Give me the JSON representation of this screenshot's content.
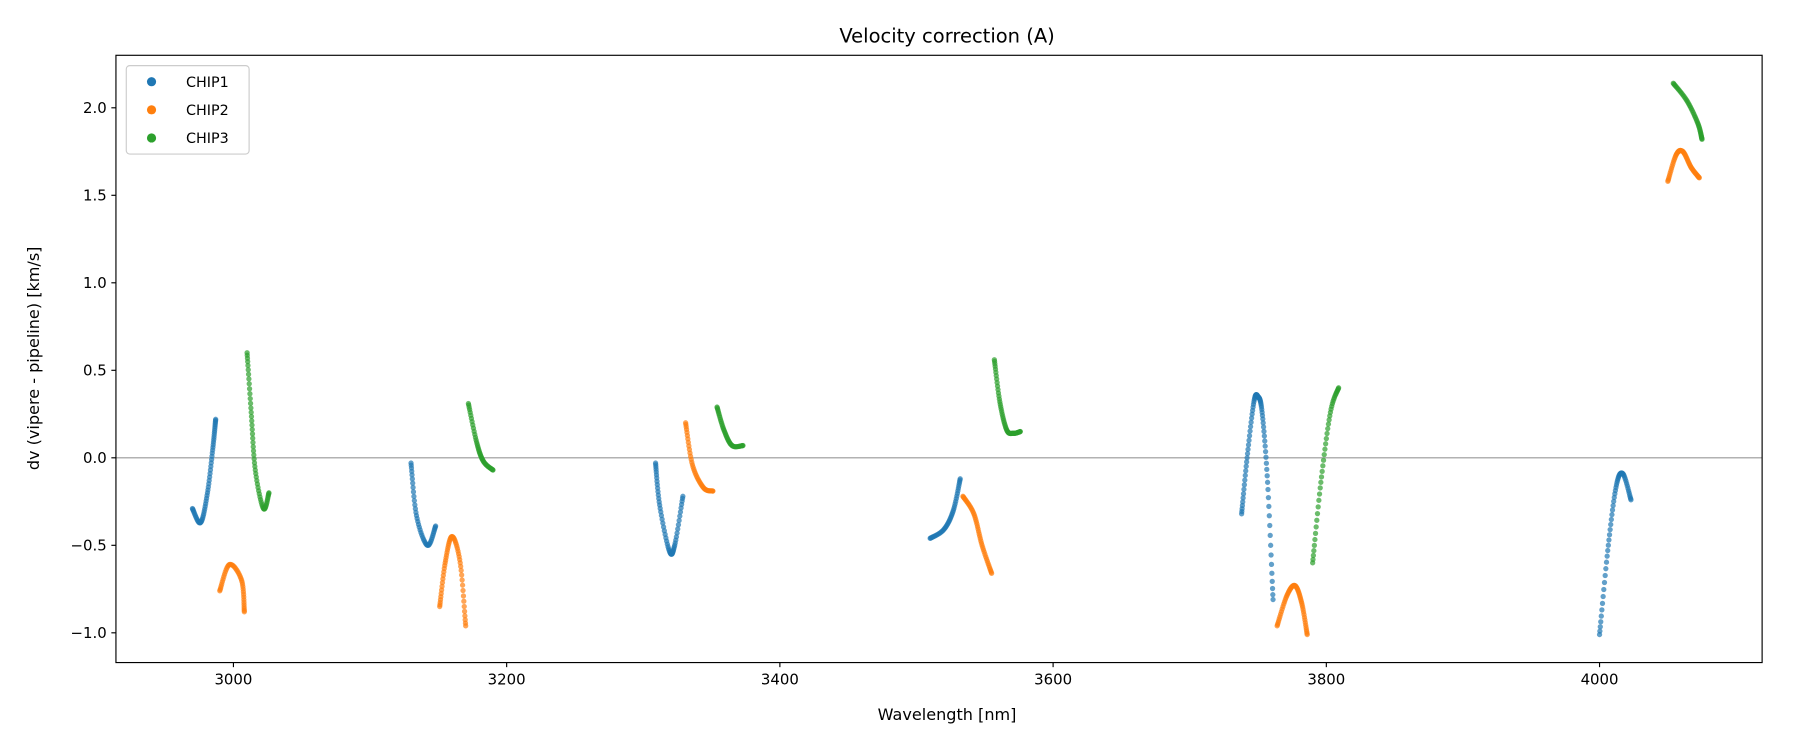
{
  "chart_data": {
    "type": "scatter",
    "title": "Velocity correction (A)",
    "xlabel": "Wavelength [nm]",
    "ylabel": "dv (vipere - pipeline) [km/s]",
    "xlim": [
      2914,
      4119
    ],
    "ylim": [
      -1.17,
      2.3
    ],
    "xticks": [
      3000,
      3200,
      3400,
      3600,
      3800,
      4000
    ],
    "xtick_labels": [
      "3000",
      "3200",
      "3400",
      "3600",
      "3800",
      "4000"
    ],
    "yticks": [
      -1.0,
      -0.5,
      0.0,
      0.5,
      1.0,
      1.5,
      2.0
    ],
    "ytick_labels": [
      "−1.0",
      "−0.5",
      "0.0",
      "0.5",
      "1.0",
      "1.5",
      "2.0"
    ],
    "hline": 0.0,
    "grid": false,
    "legend_position": "top-left",
    "series": [
      {
        "name": "CHIP1",
        "color": "#1f77b4",
        "segments": [
          [
            [
              2970,
              -0.29
            ],
            [
              2976,
              -0.37
            ],
            [
              2981,
              -0.2
            ],
            [
              2985,
              0.06
            ],
            [
              2987,
              0.22
            ]
          ],
          [
            [
              3130,
              -0.03
            ],
            [
              3134,
              -0.33
            ],
            [
              3142,
              -0.5
            ],
            [
              3148,
              -0.39
            ]
          ],
          [
            [
              3309,
              -0.03
            ],
            [
              3312,
              -0.27
            ],
            [
              3319,
              -0.53
            ],
            [
              3323,
              -0.5
            ],
            [
              3329,
              -0.22
            ]
          ],
          [
            [
              3510,
              -0.46
            ],
            [
              3520,
              -0.41
            ],
            [
              3527,
              -0.3
            ],
            [
              3532,
              -0.12
            ]
          ],
          [
            [
              3738,
              -0.32
            ],
            [
              3742,
              0.0
            ],
            [
              3747,
              0.32
            ],
            [
              3750,
              0.35
            ],
            [
              3753,
              0.26
            ],
            [
              3757,
              -0.14
            ],
            [
              3761,
              -0.81
            ]
          ],
          [
            [
              4000,
              -1.01
            ],
            [
              4006,
              -0.53
            ],
            [
              4012,
              -0.17
            ],
            [
              4017,
              -0.09
            ],
            [
              4023,
              -0.24
            ]
          ]
        ]
      },
      {
        "name": "CHIP2",
        "color": "#ff7f0e",
        "segments": [
          [
            [
              2990,
              -0.76
            ],
            [
              2997,
              -0.61
            ],
            [
              3006,
              -0.7
            ],
            [
              3008,
              -0.88
            ]
          ],
          [
            [
              3151,
              -0.85
            ],
            [
              3155,
              -0.6
            ],
            [
              3160,
              -0.45
            ],
            [
              3166,
              -0.6
            ],
            [
              3170,
              -0.96
            ]
          ],
          [
            [
              3331,
              0.2
            ],
            [
              3336,
              -0.04
            ],
            [
              3344,
              -0.17
            ],
            [
              3351,
              -0.19
            ]
          ],
          [
            [
              3534,
              -0.22
            ],
            [
              3542,
              -0.32
            ],
            [
              3548,
              -0.5
            ],
            [
              3555,
              -0.66
            ]
          ],
          [
            [
              3764,
              -0.96
            ],
            [
              3771,
              -0.79
            ],
            [
              3777,
              -0.73
            ],
            [
              3782,
              -0.83
            ],
            [
              3786,
              -1.01
            ]
          ],
          [
            [
              4050,
              1.58
            ],
            [
              4056,
              1.73
            ],
            [
              4061,
              1.75
            ],
            [
              4067,
              1.66
            ],
            [
              4073,
              1.6
            ]
          ]
        ]
      },
      {
        "name": "CHIP3",
        "color": "#2ca02c",
        "segments": [
          [
            [
              3010,
              0.6
            ],
            [
              3013,
              0.26
            ],
            [
              3016,
              -0.07
            ],
            [
              3022,
              -0.29
            ],
            [
              3026,
              -0.2
            ]
          ],
          [
            [
              3172,
              0.31
            ],
            [
              3178,
              0.09
            ],
            [
              3183,
              -0.02
            ],
            [
              3190,
              -0.07
            ]
          ],
          [
            [
              3354,
              0.29
            ],
            [
              3359,
              0.16
            ],
            [
              3365,
              0.07
            ],
            [
              3373,
              0.07
            ]
          ],
          [
            [
              3557,
              0.56
            ],
            [
              3561,
              0.32
            ],
            [
              3566,
              0.16
            ],
            [
              3571,
              0.14
            ],
            [
              3576,
              0.15
            ]
          ],
          [
            [
              3790,
              -0.6
            ],
            [
              3796,
              -0.14
            ],
            [
              3803,
              0.26
            ],
            [
              3809,
              0.4
            ]
          ],
          [
            [
              4054,
              2.14
            ],
            [
              4064,
              2.04
            ],
            [
              4072,
              1.91
            ],
            [
              4075,
              1.82
            ]
          ]
        ]
      }
    ]
  }
}
